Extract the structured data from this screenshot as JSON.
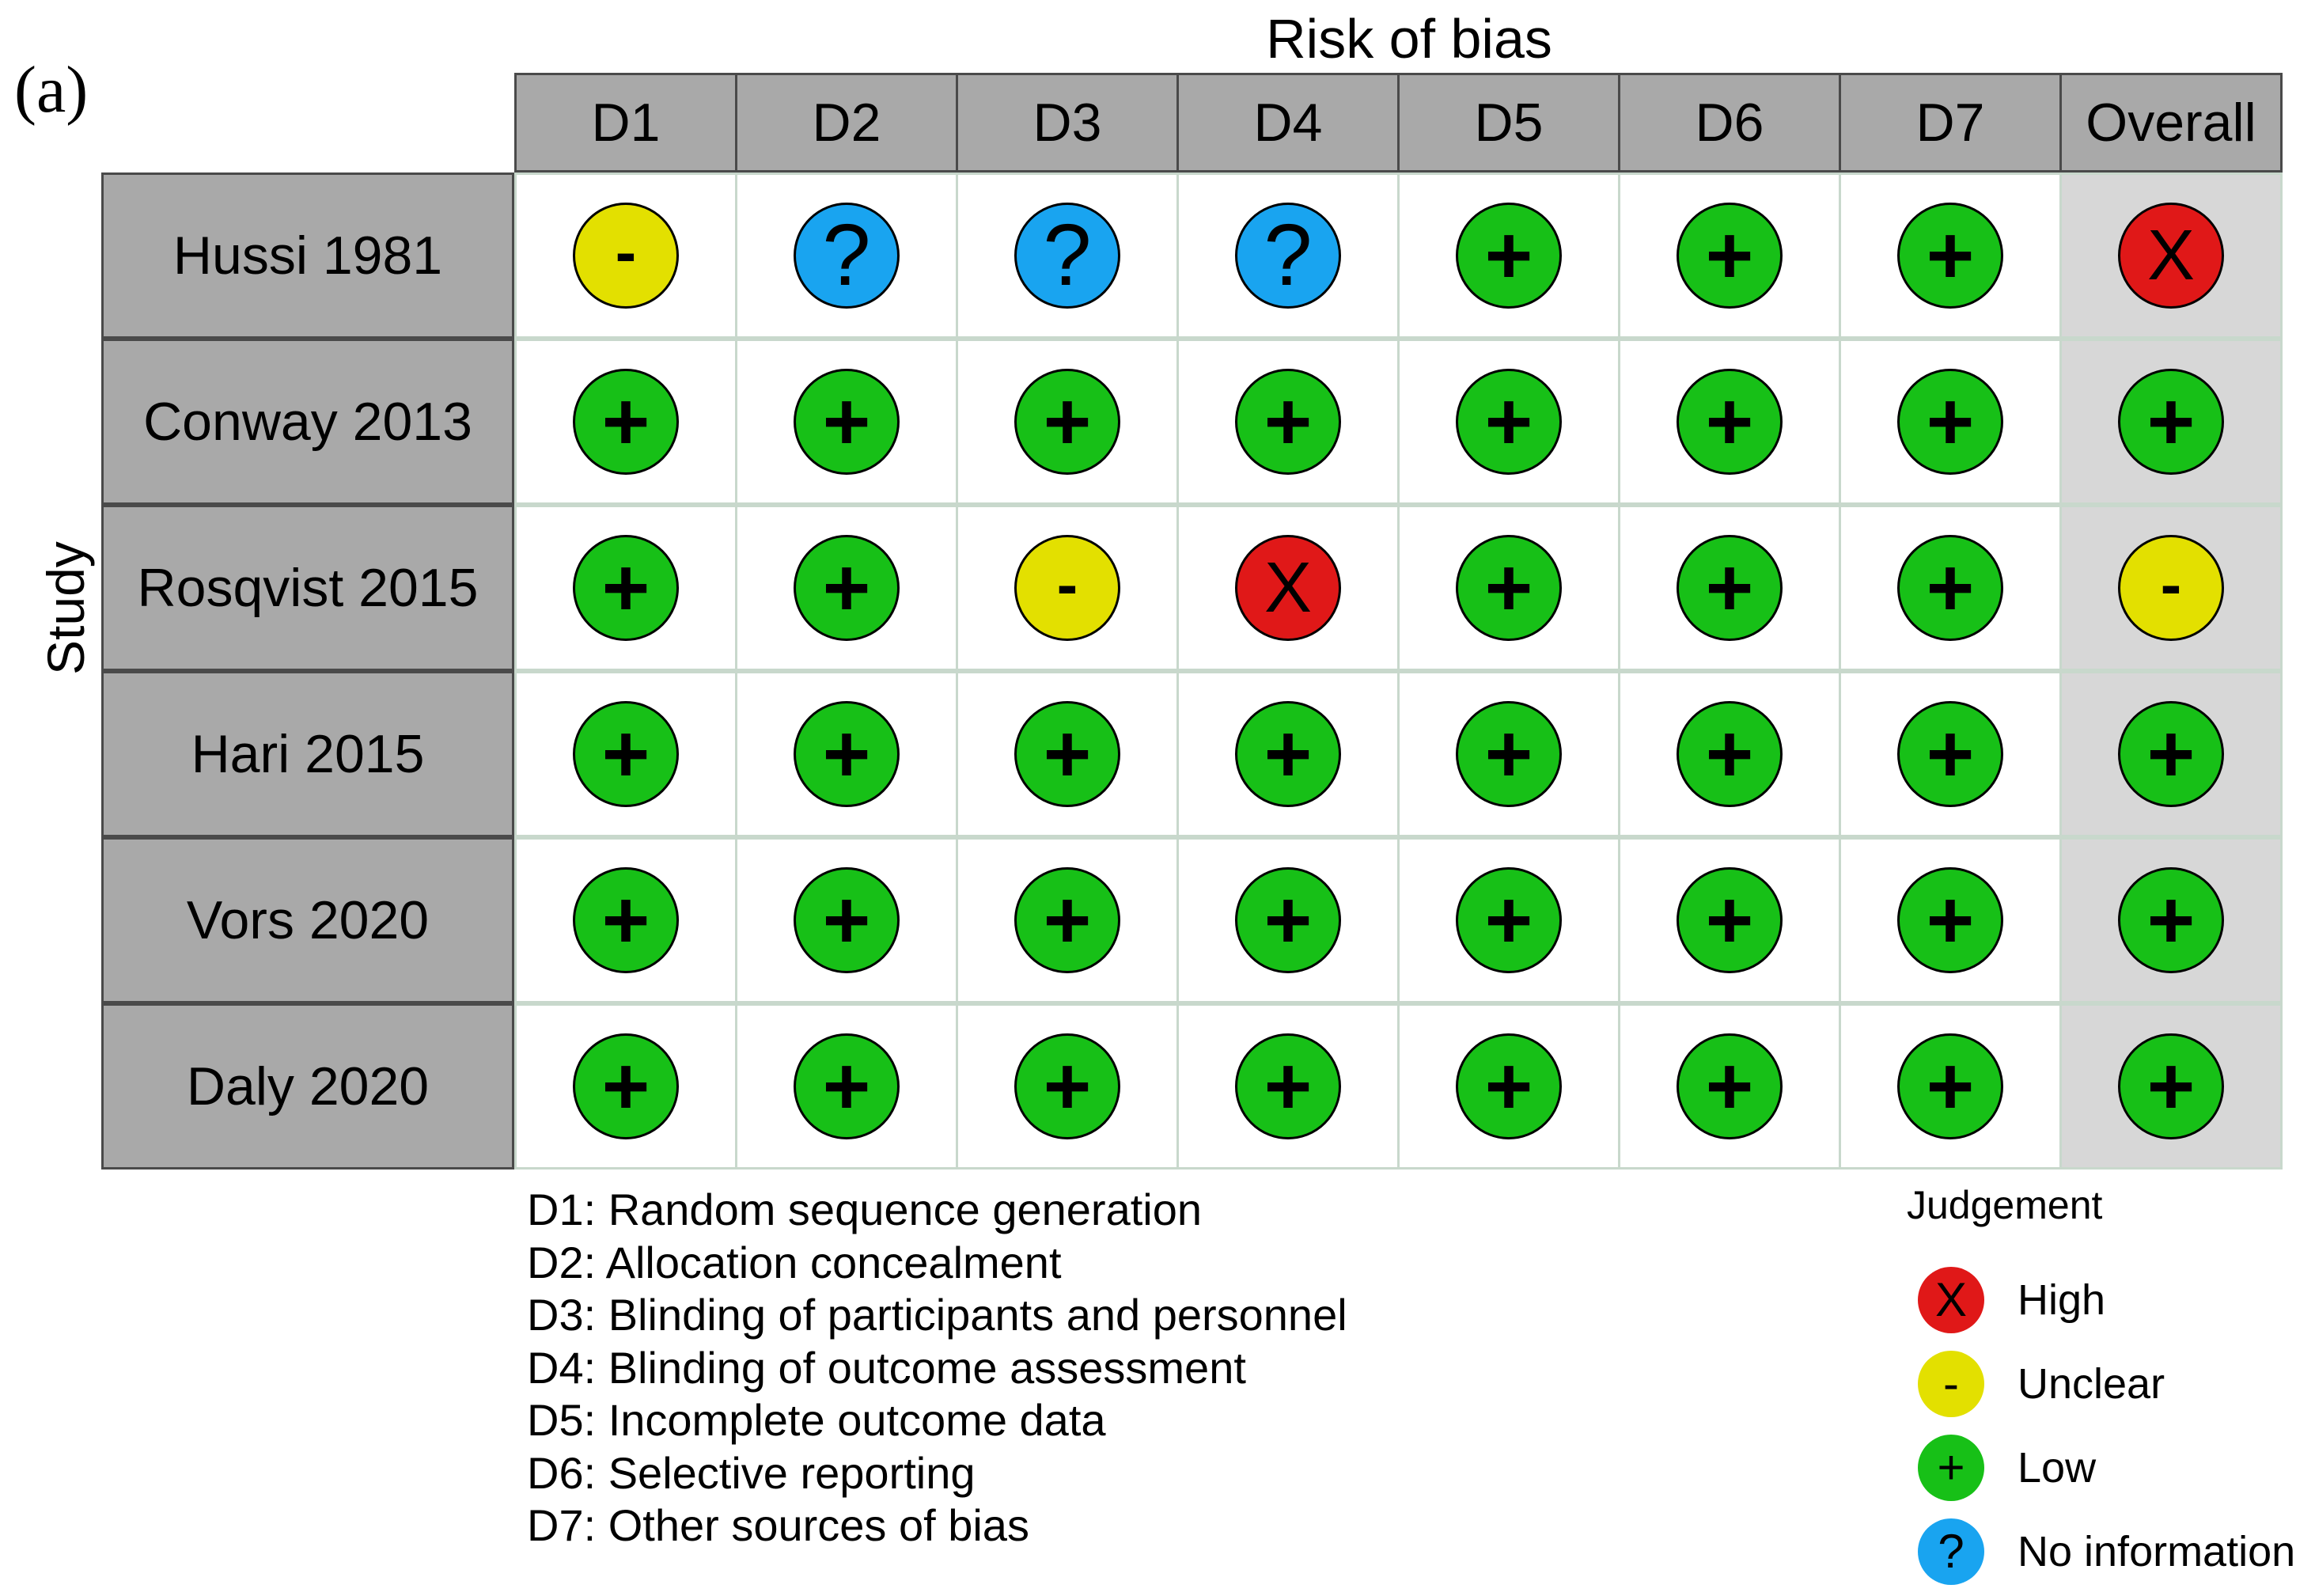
{
  "panel_label": "(a)",
  "x_title": "Risk of bias",
  "y_title": "Study",
  "domains": [
    "D1",
    "D2",
    "D3",
    "D4",
    "D5",
    "D6",
    "D7",
    "Overall"
  ],
  "symbols": {
    "high": "X",
    "unclear": "-",
    "low": "+",
    "noinfo": "?"
  },
  "colors": {
    "high": "#e01818",
    "unclear": "#e3e000",
    "low": "#17c017",
    "noinfo": "#19a4f0",
    "header_bg": "#a9a9a9",
    "overall_bg": "#d7d7d7"
  },
  "chart_data": {
    "type": "table",
    "title": "Risk of bias",
    "columns": [
      "D1",
      "D2",
      "D3",
      "D4",
      "D5",
      "D6",
      "D7",
      "Overall"
    ],
    "rows": [
      {
        "study": "Hussi 1981",
        "judgements": [
          "unclear",
          "noinfo",
          "noinfo",
          "noinfo",
          "low",
          "low",
          "low",
          "high"
        ]
      },
      {
        "study": "Conway 2013",
        "judgements": [
          "low",
          "low",
          "low",
          "low",
          "low",
          "low",
          "low",
          "low"
        ]
      },
      {
        "study": "Rosqvist 2015",
        "judgements": [
          "low",
          "low",
          "unclear",
          "high",
          "low",
          "low",
          "low",
          "unclear"
        ]
      },
      {
        "study": "Hari 2015",
        "judgements": [
          "low",
          "low",
          "low",
          "low",
          "low",
          "low",
          "low",
          "low"
        ]
      },
      {
        "study": "Vors 2020",
        "judgements": [
          "low",
          "low",
          "low",
          "low",
          "low",
          "low",
          "low",
          "low"
        ]
      },
      {
        "study": "Daly 2020",
        "judgements": [
          "low",
          "low",
          "low",
          "low",
          "low",
          "low",
          "low",
          "low"
        ]
      }
    ]
  },
  "domain_definitions": [
    "D1: Random sequence generation",
    "D2: Allocation concealment",
    "D3: Blinding of participants and personnel",
    "D4: Blinding of outcome assessment",
    "D5: Incomplete outcome data",
    "D6: Selective reporting",
    "D7: Other sources of bias"
  ],
  "legend": {
    "title": "Judgement",
    "items": [
      {
        "key": "high",
        "label": "High"
      },
      {
        "key": "unclear",
        "label": "Unclear"
      },
      {
        "key": "low",
        "label": "Low"
      },
      {
        "key": "noinfo",
        "label": "No information"
      }
    ]
  }
}
